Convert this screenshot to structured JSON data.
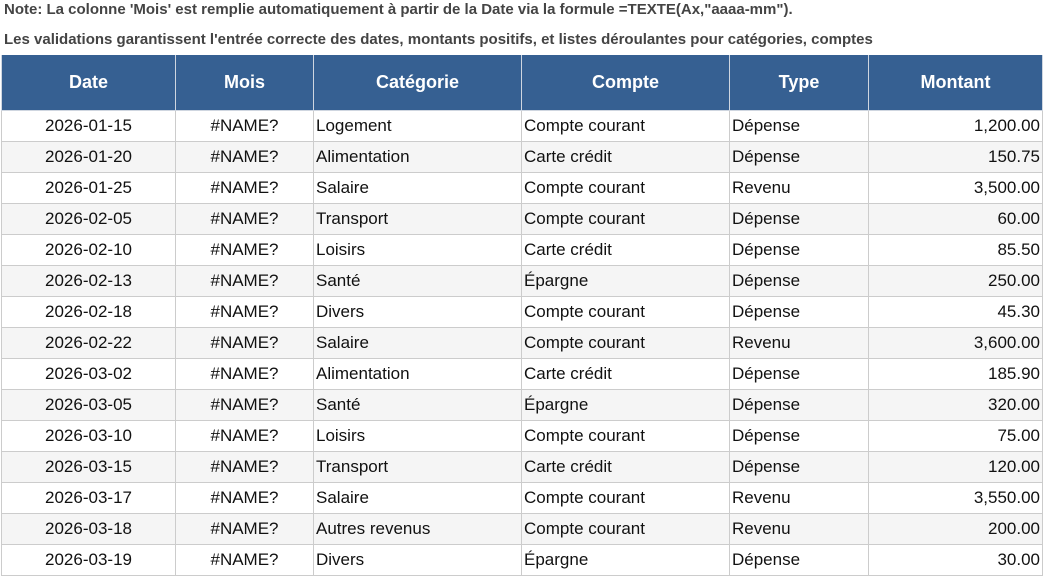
{
  "notes": [
    "Note: La colonne 'Mois' est remplie automatiquement à partir de la Date via la formule =TEXTE(Ax,\"aaaa-mm\").",
    "Les validations garantissent l'entrée correcte des dates, montants positifs, et listes déroulantes pour catégories, comptes"
  ],
  "header_color": "#366092",
  "columns": [
    "Date",
    "Mois",
    "Catégorie",
    "Compte",
    "Type",
    "Montant"
  ],
  "rows": [
    [
      "2026-01-15",
      "#NAME?",
      "Logement",
      "Compte courant",
      "Dépense",
      "1,200.00"
    ],
    [
      "2026-01-20",
      "#NAME?",
      "Alimentation",
      "Carte crédit",
      "Dépense",
      "150.75"
    ],
    [
      "2026-01-25",
      "#NAME?",
      "Salaire",
      "Compte courant",
      "Revenu",
      "3,500.00"
    ],
    [
      "2026-02-05",
      "#NAME?",
      "Transport",
      "Compte courant",
      "Dépense",
      "60.00"
    ],
    [
      "2026-02-10",
      "#NAME?",
      "Loisirs",
      "Carte crédit",
      "Dépense",
      "85.50"
    ],
    [
      "2026-02-13",
      "#NAME?",
      "Santé",
      "Épargne",
      "Dépense",
      "250.00"
    ],
    [
      "2026-02-18",
      "#NAME?",
      "Divers",
      "Compte courant",
      "Dépense",
      "45.30"
    ],
    [
      "2026-02-22",
      "#NAME?",
      "Salaire",
      "Compte courant",
      "Revenu",
      "3,600.00"
    ],
    [
      "2026-03-02",
      "#NAME?",
      "Alimentation",
      "Carte crédit",
      "Dépense",
      "185.90"
    ],
    [
      "2026-03-05",
      "#NAME?",
      "Santé",
      "Épargne",
      "Dépense",
      "320.00"
    ],
    [
      "2026-03-10",
      "#NAME?",
      "Loisirs",
      "Compte courant",
      "Dépense",
      "75.00"
    ],
    [
      "2026-03-15",
      "#NAME?",
      "Transport",
      "Carte crédit",
      "Dépense",
      "120.00"
    ],
    [
      "2026-03-17",
      "#NAME?",
      "Salaire",
      "Compte courant",
      "Revenu",
      "3,550.00"
    ],
    [
      "2026-03-18",
      "#NAME?",
      "Autres revenus",
      "Compte courant",
      "Revenu",
      "200.00"
    ],
    [
      "2026-03-19",
      "#NAME?",
      "Divers",
      "Épargne",
      "Dépense",
      "30.00"
    ]
  ]
}
